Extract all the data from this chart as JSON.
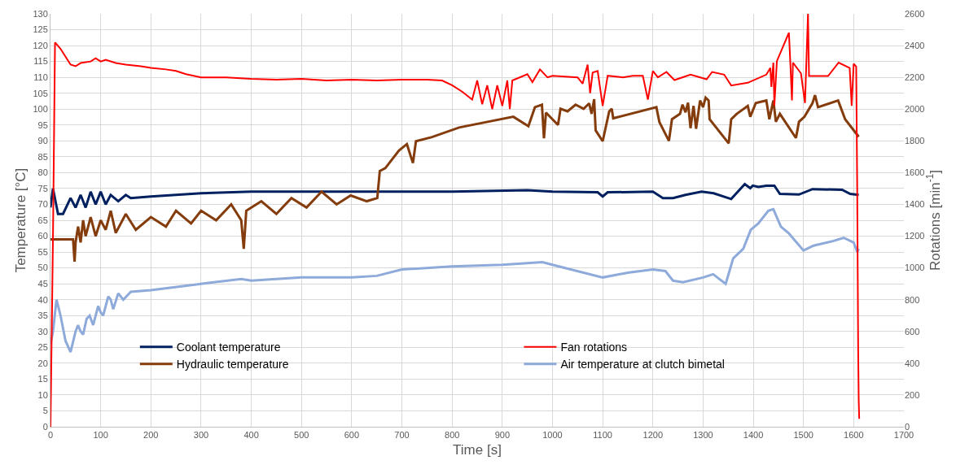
{
  "chart_data": {
    "type": "line",
    "xlabel": "Time [s]",
    "ylabel": "Temperature [°C]",
    "y2label": "Rotations [min$^{-1}$]",
    "xlim": [
      0,
      1700
    ],
    "xticks": [
      0,
      100,
      200,
      300,
      400,
      500,
      600,
      700,
      800,
      900,
      1000,
      1100,
      1200,
      1300,
      1400,
      1500,
      1600,
      1700
    ],
    "ylim": [
      0,
      130
    ],
    "yticks": [
      0,
      5,
      10,
      15,
      20,
      25,
      30,
      35,
      40,
      45,
      50,
      55,
      60,
      65,
      70,
      75,
      80,
      85,
      90,
      95,
      100,
      105,
      110,
      115,
      120,
      125,
      130
    ],
    "y2lim": [
      0,
      2600
    ],
    "y2ticks": [
      0,
      200,
      400,
      600,
      800,
      1000,
      1200,
      1400,
      1600,
      1800,
      2000,
      2200,
      2400,
      2600
    ],
    "grid": true,
    "legend": "bottom",
    "marker": "none",
    "line_style": "solid",
    "series": [
      {
        "name": "Coolant temperature",
        "color": "#002060",
        "x": [
          0,
          5,
          15,
          25,
          40,
          50,
          60,
          70,
          80,
          90,
          100,
          110,
          120,
          135,
          150,
          160,
          200,
          300,
          400,
          500,
          650,
          800,
          950,
          1000,
          1090,
          1100,
          1110,
          1200,
          1220,
          1240,
          1265,
          1297,
          1321,
          1356,
          1383,
          1394,
          1399,
          1410,
          1426,
          1442,
          1453,
          1491,
          1518,
          1577,
          1593,
          1610
        ],
        "values": [
          69,
          75,
          67,
          67,
          72,
          69,
          73,
          69,
          74,
          70,
          74,
          70,
          73,
          71,
          73,
          72,
          72.5,
          73.5,
          74,
          74,
          74,
          74,
          74.5,
          74,
          73.8,
          72.5,
          73.8,
          74,
          72,
          72,
          73,
          74,
          73.5,
          71.7,
          76.4,
          75.1,
          75.9,
          75.5,
          75.9,
          75.9,
          73.3,
          73.1,
          74.8,
          74.6,
          73.3,
          73
        ]
      },
      {
        "name": "Fan rotations",
        "color": "#ff0000",
        "axis": "y2",
        "x": [
          0,
          5,
          9,
          20,
          30,
          40,
          50,
          60,
          80,
          90,
          100,
          110,
          130,
          150,
          180,
          200,
          230,
          250,
          270,
          300,
          350,
          400,
          450,
          500,
          550,
          600,
          650,
          700,
          750,
          780,
          800,
          820,
          840,
          850,
          860,
          870,
          880,
          890,
          900,
          910,
          915,
          920,
          950,
          960,
          975,
          990,
          1000,
          1050,
          1060,
          1070,
          1075,
          1080,
          1090,
          1100,
          1110,
          1140,
          1160,
          1180,
          1190,
          1200,
          1210,
          1227,
          1243,
          1275,
          1307,
          1318,
          1342,
          1356,
          1389,
          1426,
          1434,
          1436,
          1440,
          1442,
          1447,
          1471,
          1474,
          1477,
          1479,
          1495,
          1503,
          1509,
          1511,
          1549,
          1570,
          1592,
          1596,
          1600,
          1605,
          1607,
          1609,
          1610,
          1611
        ],
        "values": [
          0,
          1200,
          2420,
          2380,
          2330,
          2280,
          2270,
          2290,
          2300,
          2320,
          2300,
          2310,
          2290,
          2280,
          2270,
          2260,
          2250,
          2240,
          2220,
          2200,
          2200,
          2190,
          2185,
          2190,
          2180,
          2185,
          2180,
          2185,
          2185,
          2180,
          2150,
          2110,
          2060,
          2180,
          2030,
          2150,
          2000,
          2150,
          2020,
          2180,
          2000,
          2180,
          2220,
          2170,
          2250,
          2200,
          2210,
          2200,
          2160,
          2280,
          2100,
          2230,
          2240,
          2020,
          2210,
          2200,
          2210,
          2210,
          2060,
          2240,
          2200,
          2234,
          2183,
          2217,
          2188,
          2234,
          2217,
          2149,
          2166,
          2217,
          2259,
          2140,
          2293,
          2021,
          2302,
          2481,
          2276,
          2055,
          2293,
          2225,
          2038,
          2600,
          2208,
          2208,
          2293,
          2259,
          2021,
          2285,
          2268,
          1510,
          460,
          170,
          50
        ]
      },
      {
        "name": "Hydraulic temperature",
        "color": "#843c0c",
        "x": [
          0,
          45,
          48,
          50,
          55,
          60,
          65,
          70,
          80,
          90,
          100,
          110,
          120,
          130,
          150,
          170,
          200,
          230,
          250,
          280,
          300,
          330,
          360,
          380,
          385,
          390,
          420,
          450,
          480,
          510,
          540,
          570,
          598,
          630,
          651,
          656,
          667,
          694,
          710,
          722,
          728,
          760,
          814,
          922,
          952,
          965,
          979,
          983,
          987,
          1011,
          1016,
          1030,
          1046,
          1062,
          1073,
          1078,
          1083,
          1086,
          1100,
          1113,
          1118,
          1121,
          1207,
          1213,
          1232,
          1238,
          1254,
          1259,
          1265,
          1270,
          1275,
          1281,
          1286,
          1294,
          1300,
          1305,
          1311,
          1313,
          1351,
          1356,
          1367,
          1389,
          1394,
          1405,
          1415,
          1426,
          1432,
          1440,
          1445,
          1453,
          1485,
          1491,
          1502,
          1518,
          1523,
          1529,
          1569,
          1583,
          1610
        ],
        "values": [
          59,
          59,
          52,
          58,
          63,
          58,
          65,
          60,
          66,
          60,
          65,
          62,
          68,
          61,
          67,
          62,
          66,
          63,
          68,
          64,
          68,
          65,
          70,
          65,
          56,
          68,
          71,
          67,
          72,
          69,
          74,
          70,
          72.8,
          71,
          72,
          80.5,
          81.4,
          86.9,
          89,
          83,
          89.9,
          91.2,
          94.2,
          97.6,
          94.6,
          100.6,
          101.4,
          90.8,
          98.9,
          95,
          100.1,
          99.3,
          101.4,
          100.1,
          101.8,
          98.5,
          103.1,
          93.3,
          89.9,
          99.3,
          100.1,
          97.1,
          100.6,
          95.9,
          90,
          96.8,
          98.5,
          101.4,
          99,
          102,
          94,
          101,
          93.8,
          102.7,
          100.6,
          103.6,
          102.7,
          96.8,
          89.2,
          96.8,
          98.5,
          101,
          97.6,
          101.9,
          102.3,
          102.7,
          96.8,
          102.7,
          96,
          98.5,
          90.9,
          96,
          97.6,
          101.9,
          104.4,
          100.6,
          102.7,
          96.8,
          91.3
        ]
      },
      {
        "name": "Air temperature at clutch bimetal",
        "color": "#8eaadb",
        "x": [
          0,
          5,
          12,
          20,
          30,
          40,
          50,
          55,
          60,
          65,
          72,
          78,
          85,
          95,
          100,
          105,
          115,
          120,
          125,
          135,
          145,
          160,
          200,
          300,
          380,
          400,
          500,
          600,
          650,
          700,
          800,
          900,
          980,
          1000,
          1100,
          1150,
          1200,
          1225,
          1240,
          1260,
          1300,
          1320,
          1345,
          1360,
          1380,
          1395,
          1410,
          1430,
          1440,
          1455,
          1470,
          1500,
          1520,
          1560,
          1580,
          1600,
          1607,
          1610
        ],
        "values": [
          26,
          30,
          40,
          35,
          27,
          23.5,
          30,
          32,
          30,
          29,
          34,
          35,
          32,
          38,
          36,
          35,
          41,
          40,
          37,
          42,
          40,
          42.5,
          43,
          45,
          46.5,
          46,
          47,
          47,
          47.5,
          49.5,
          50.5,
          51,
          51.8,
          51,
          47,
          48.5,
          49.5,
          49,
          46,
          45.5,
          47,
          48,
          45,
          53,
          56,
          62,
          64,
          68,
          68.5,
          63,
          61,
          55.5,
          57,
          58.5,
          59.5,
          58,
          55,
          56
        ]
      }
    ]
  }
}
